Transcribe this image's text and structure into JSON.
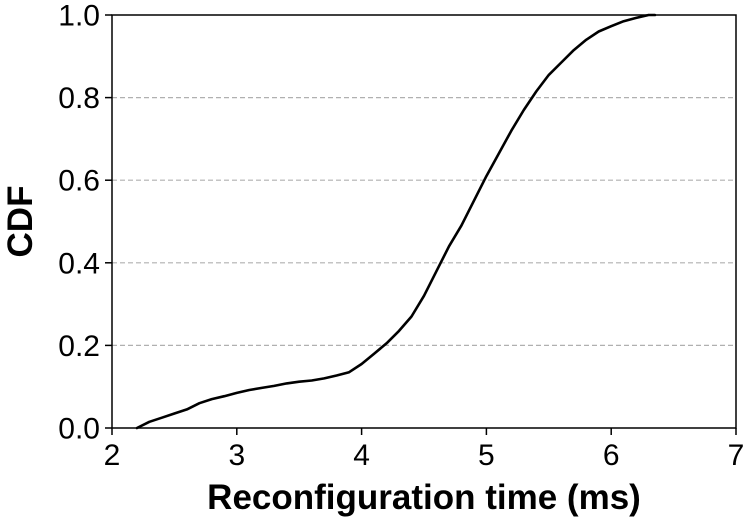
{
  "chart_data": {
    "type": "line",
    "xlabel": "Reconfiguration time (ms)",
    "ylabel": "CDF",
    "xlim": [
      2,
      7
    ],
    "ylim": [
      0.0,
      1.0
    ],
    "xticks": [
      "2",
      "3",
      "4",
      "5",
      "6",
      "7"
    ],
    "yticks": [
      "0.0",
      "0.2",
      "0.4",
      "0.6",
      "0.8",
      "1.0"
    ],
    "grid": "horizontal dashed",
    "series": [
      {
        "color": "#000000",
        "x": [
          2.2,
          2.3,
          2.4,
          2.5,
          2.6,
          2.7,
          2.8,
          2.9,
          3.0,
          3.1,
          3.2,
          3.3,
          3.4,
          3.5,
          3.6,
          3.7,
          3.8,
          3.9,
          4.0,
          4.1,
          4.2,
          4.3,
          4.4,
          4.5,
          4.6,
          4.7,
          4.8,
          4.9,
          5.0,
          5.1,
          5.2,
          5.3,
          5.4,
          5.5,
          5.6,
          5.7,
          5.8,
          5.9,
          6.0,
          6.1,
          6.2,
          6.3,
          6.35
        ],
        "y": [
          0.0,
          0.015,
          0.025,
          0.035,
          0.045,
          0.06,
          0.07,
          0.077,
          0.085,
          0.092,
          0.097,
          0.102,
          0.108,
          0.112,
          0.115,
          0.12,
          0.127,
          0.135,
          0.155,
          0.18,
          0.205,
          0.235,
          0.27,
          0.32,
          0.38,
          0.44,
          0.49,
          0.55,
          0.61,
          0.665,
          0.72,
          0.77,
          0.815,
          0.855,
          0.885,
          0.915,
          0.94,
          0.96,
          0.973,
          0.985,
          0.993,
          1.0,
          1.0
        ]
      }
    ]
  }
}
